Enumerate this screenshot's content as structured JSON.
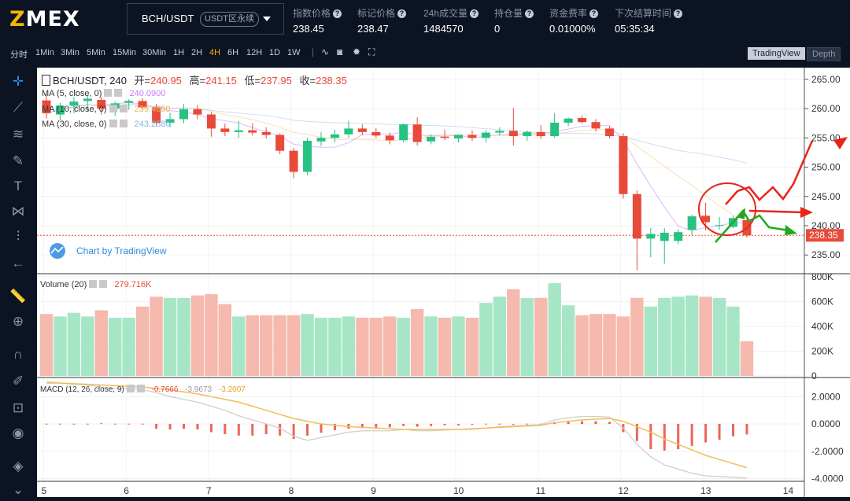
{
  "header": {
    "logo": "ZMEX",
    "pair": "BCH/USDT",
    "pair_tag": "USDT区永续",
    "stats": [
      {
        "label": "指数价格",
        "value": "238.45"
      },
      {
        "label": "标记价格",
        "value": "238.47"
      },
      {
        "label": "24h成交量",
        "value": "1484570"
      },
      {
        "label": "持仓量",
        "value": "0"
      },
      {
        "label": "资金费率",
        "value": "0.01000%"
      },
      {
        "label": "下次结算时间",
        "value": "05:35:34"
      }
    ]
  },
  "toolbar": {
    "timeframes": [
      "分时",
      "1Min",
      "3Min",
      "5Min",
      "15Min",
      "30Min",
      "1H",
      "2H",
      "4H",
      "6H",
      "12H",
      "1D",
      "1W"
    ],
    "active_timeframe": "4H",
    "view_tabs": [
      "TradingView",
      "Depth"
    ]
  },
  "sidebar": {
    "icons": [
      "crosshair-icon",
      "trend-line-icon",
      "fib-icon",
      "brush-icon",
      "text-icon",
      "pattern-icon",
      "measure-icon",
      "back-arrow-icon",
      "ruler-icon",
      "zoom-in-icon",
      "magnet-icon",
      "lock-draw-icon",
      "lock-icon",
      "eye-icon",
      "layers-icon",
      "chevron-down-icon"
    ]
  },
  "chart": {
    "legend": {
      "symbol": "BCH/USDT, 240",
      "open_label": "开=",
      "open": "240.95",
      "high_label": "高=",
      "high": "241.15",
      "low_label": "低=",
      "low": "237.95",
      "close_label": "收=",
      "close": "238.35",
      "ma5_label": "MA (5, close, 0)",
      "ma5": "240.0900",
      "ma10_label": "MA (10, close, 0)",
      "ma10": "239.4650",
      "ma30_label": "MA (30, close, 0)",
      "ma30": "243.2580"
    },
    "watermark": "Chart by TradingView",
    "price_axis": [
      "265.00",
      "260.00",
      "255.00",
      "250.00",
      "245.00",
      "240.00",
      "235.00"
    ],
    "last_price": "238.35",
    "volume_legend": {
      "label": "Volume (20)",
      "value": "279.716K"
    },
    "volume_axis": [
      "800K",
      "600K",
      "400K",
      "200K",
      "0"
    ],
    "macd_legend": {
      "label": "MACD (12, 26, close, 9)",
      "hist": "-0.7666",
      "macd": "-3.9673",
      "signal": "-3.2007"
    },
    "macd_axis": [
      "2.0000",
      "0.0000",
      "-2.0000",
      "-4.0000"
    ],
    "date_axis": [
      "5",
      "6",
      "7",
      "8",
      "9",
      "10",
      "11",
      "12",
      "13",
      "14"
    ]
  },
  "chart_data": {
    "type": "candlestick",
    "up_color": "#26c281",
    "down_color": "#e84a3a",
    "price_ylim": [
      231.8,
      267.0
    ],
    "volume_ylim": [
      0,
      800000
    ],
    "macd_ylim": [
      -4.2,
      3.4
    ],
    "date_labels": [
      "5",
      "6",
      "7",
      "8",
      "9",
      "10",
      "11",
      "12",
      "13",
      "14"
    ],
    "candles": [
      {
        "o": 261.4,
        "h": 262.5,
        "l": 258.3,
        "c": 259.2,
        "v": 500000
      },
      {
        "o": 259.0,
        "h": 261.0,
        "l": 258.0,
        "c": 260.5,
        "v": 480000
      },
      {
        "o": 260.5,
        "h": 262.0,
        "l": 259.2,
        "c": 261.2,
        "v": 510000
      },
      {
        "o": 261.3,
        "h": 262.2,
        "l": 259.6,
        "c": 261.7,
        "v": 480000
      },
      {
        "o": 261.5,
        "h": 262.0,
        "l": 259.0,
        "c": 260.0,
        "v": 530000
      },
      {
        "o": 260.0,
        "h": 261.2,
        "l": 258.8,
        "c": 260.9,
        "v": 470000
      },
      {
        "o": 261.0,
        "h": 261.6,
        "l": 259.8,
        "c": 261.3,
        "v": 470000
      },
      {
        "o": 261.3,
        "h": 261.8,
        "l": 259.8,
        "c": 260.2,
        "v": 560000
      },
      {
        "o": 260.2,
        "h": 260.8,
        "l": 257.0,
        "c": 257.6,
        "v": 640000
      },
      {
        "o": 257.6,
        "h": 259.3,
        "l": 256.8,
        "c": 258.2,
        "v": 630000
      },
      {
        "o": 258.2,
        "h": 260.8,
        "l": 257.5,
        "c": 259.9,
        "v": 630000
      },
      {
        "o": 259.9,
        "h": 260.6,
        "l": 258.2,
        "c": 259.0,
        "v": 650000
      },
      {
        "o": 259.0,
        "h": 259.4,
        "l": 255.2,
        "c": 256.6,
        "v": 660000
      },
      {
        "o": 256.6,
        "h": 257.4,
        "l": 255.3,
        "c": 256.0,
        "v": 580000
      },
      {
        "o": 256.0,
        "h": 257.9,
        "l": 255.0,
        "c": 256.3,
        "v": 480000
      },
      {
        "o": 256.3,
        "h": 257.5,
        "l": 255.4,
        "c": 255.9,
        "v": 490000
      },
      {
        "o": 256.0,
        "h": 256.8,
        "l": 254.9,
        "c": 255.5,
        "v": 490000
      },
      {
        "o": 255.5,
        "h": 255.8,
        "l": 252.2,
        "c": 252.8,
        "v": 490000
      },
      {
        "o": 252.8,
        "h": 253.3,
        "l": 248.1,
        "c": 249.2,
        "v": 490000
      },
      {
        "o": 249.2,
        "h": 255.0,
        "l": 248.6,
        "c": 254.5,
        "v": 500000
      },
      {
        "o": 254.4,
        "h": 256.0,
        "l": 253.6,
        "c": 255.0,
        "v": 470000
      },
      {
        "o": 255.0,
        "h": 256.4,
        "l": 254.2,
        "c": 255.6,
        "v": 470000
      },
      {
        "o": 255.6,
        "h": 257.9,
        "l": 255.0,
        "c": 256.6,
        "v": 480000
      },
      {
        "o": 256.6,
        "h": 257.3,
        "l": 255.5,
        "c": 256.0,
        "v": 470000
      },
      {
        "o": 256.0,
        "h": 256.7,
        "l": 255.0,
        "c": 255.4,
        "v": 470000
      },
      {
        "o": 255.4,
        "h": 255.9,
        "l": 253.9,
        "c": 254.6,
        "v": 480000
      },
      {
        "o": 254.6,
        "h": 257.5,
        "l": 254.2,
        "c": 257.3,
        "v": 470000
      },
      {
        "o": 257.3,
        "h": 258.5,
        "l": 253.7,
        "c": 254.3,
        "v": 540000
      },
      {
        "o": 254.4,
        "h": 255.6,
        "l": 253.9,
        "c": 255.2,
        "v": 480000
      },
      {
        "o": 255.2,
        "h": 256.4,
        "l": 254.6,
        "c": 255.0,
        "v": 470000
      },
      {
        "o": 254.9,
        "h": 255.6,
        "l": 254.2,
        "c": 255.5,
        "v": 480000
      },
      {
        "o": 255.5,
        "h": 256.3,
        "l": 254.5,
        "c": 255.0,
        "v": 470000
      },
      {
        "o": 255.0,
        "h": 256.3,
        "l": 254.2,
        "c": 255.9,
        "v": 590000
      },
      {
        "o": 255.9,
        "h": 256.8,
        "l": 255.4,
        "c": 256.2,
        "v": 640000
      },
      {
        "o": 256.2,
        "h": 260.1,
        "l": 253.7,
        "c": 255.3,
        "v": 700000
      },
      {
        "o": 255.3,
        "h": 256.3,
        "l": 254.5,
        "c": 256.0,
        "v": 630000
      },
      {
        "o": 256.0,
        "h": 257.2,
        "l": 254.8,
        "c": 255.3,
        "v": 630000
      },
      {
        "o": 255.3,
        "h": 259.2,
        "l": 255.0,
        "c": 257.6,
        "v": 750000
      },
      {
        "o": 257.6,
        "h": 258.5,
        "l": 257.0,
        "c": 258.3,
        "v": 570000
      },
      {
        "o": 258.4,
        "h": 258.8,
        "l": 257.4,
        "c": 257.7,
        "v": 490000
      },
      {
        "o": 257.7,
        "h": 258.2,
        "l": 256.1,
        "c": 256.6,
        "v": 500000
      },
      {
        "o": 256.6,
        "h": 257.0,
        "l": 254.9,
        "c": 255.3,
        "v": 500000
      },
      {
        "o": 255.3,
        "h": 255.8,
        "l": 244.6,
        "c": 245.4,
        "v": 480000
      },
      {
        "o": 245.4,
        "h": 246.0,
        "l": 232.4,
        "c": 237.8,
        "v": 630000
      },
      {
        "o": 237.8,
        "h": 239.6,
        "l": 234.6,
        "c": 238.6,
        "v": 560000
      },
      {
        "o": 237.4,
        "h": 239.6,
        "l": 233.5,
        "c": 238.8,
        "v": 630000
      },
      {
        "o": 237.4,
        "h": 239.4,
        "l": 236.8,
        "c": 238.9,
        "v": 640000
      },
      {
        "o": 239.3,
        "h": 241.9,
        "l": 238.3,
        "c": 241.6,
        "v": 650000
      },
      {
        "o": 241.7,
        "h": 243.9,
        "l": 239.2,
        "c": 240.6,
        "v": 640000
      },
      {
        "o": 240.0,
        "h": 241.5,
        "l": 239.3,
        "c": 240.1,
        "v": 630000
      },
      {
        "o": 239.8,
        "h": 241.7,
        "l": 239.6,
        "c": 241.3,
        "v": 560000
      },
      {
        "o": 240.95,
        "h": 241.15,
        "l": 237.95,
        "c": 238.35,
        "v": 279716
      }
    ],
    "macd": [
      {
        "hist": 0.02,
        "macd": 3.1,
        "signal": 3.0
      },
      {
        "hist": 0.02,
        "macd": 3.0,
        "signal": 3.0
      },
      {
        "hist": 0.02,
        "macd": 2.9,
        "signal": 2.95
      },
      {
        "hist": 0.02,
        "macd": 2.85,
        "signal": 2.9
      },
      {
        "hist": 0.05,
        "macd": 2.7,
        "signal": 2.85
      },
      {
        "hist": 0.02,
        "macd": 2.6,
        "signal": 2.8
      },
      {
        "hist": 0.02,
        "macd": 2.6,
        "signal": 2.75
      },
      {
        "hist": 0.02,
        "macd": 2.5,
        "signal": 2.7
      },
      {
        "hist": -0.35,
        "macd": 2.3,
        "signal": 2.6
      },
      {
        "hist": -0.4,
        "macd": 2.0,
        "signal": 2.5
      },
      {
        "hist": -0.35,
        "macd": 1.8,
        "signal": 2.35
      },
      {
        "hist": -0.4,
        "macd": 1.6,
        "signal": 2.2
      },
      {
        "hist": -0.6,
        "macd": 1.3,
        "signal": 2.0
      },
      {
        "hist": -0.75,
        "macd": 1.0,
        "signal": 1.8
      },
      {
        "hist": -0.85,
        "macd": 0.6,
        "signal": 1.6
      },
      {
        "hist": -0.85,
        "macd": 0.3,
        "signal": 1.3
      },
      {
        "hist": -0.75,
        "macd": 0.0,
        "signal": 1.0
      },
      {
        "hist": -0.85,
        "macd": -0.3,
        "signal": 0.7
      },
      {
        "hist": -1.1,
        "macd": -0.9,
        "signal": 0.4
      },
      {
        "hist": -0.85,
        "macd": -1.2,
        "signal": 0.2
      },
      {
        "hist": -0.65,
        "macd": -1.0,
        "signal": 0.0
      },
      {
        "hist": -0.45,
        "macd": -0.8,
        "signal": -0.1
      },
      {
        "hist": -0.35,
        "macd": -0.6,
        "signal": -0.2
      },
      {
        "hist": -0.3,
        "macd": -0.5,
        "signal": -0.25
      },
      {
        "hist": -0.3,
        "macd": -0.5,
        "signal": -0.3
      },
      {
        "hist": -0.25,
        "macd": -0.5,
        "signal": -0.35
      },
      {
        "hist": -0.15,
        "macd": -0.4,
        "signal": -0.4
      },
      {
        "hist": -0.2,
        "macd": -0.5,
        "signal": -0.4
      },
      {
        "hist": -0.15,
        "macd": -0.5,
        "signal": -0.4
      },
      {
        "hist": -0.1,
        "macd": -0.45,
        "signal": -0.4
      },
      {
        "hist": -0.1,
        "macd": -0.4,
        "signal": -0.4
      },
      {
        "hist": -0.05,
        "macd": -0.4,
        "signal": -0.35
      },
      {
        "hist": 0.02,
        "macd": -0.3,
        "signal": -0.3
      },
      {
        "hist": 0.02,
        "macd": -0.2,
        "signal": -0.25
      },
      {
        "hist": -0.05,
        "macd": -0.15,
        "signal": -0.2
      },
      {
        "hist": 0.02,
        "macd": -0.1,
        "signal": -0.15
      },
      {
        "hist": 0.02,
        "macd": -0.05,
        "signal": -0.1
      },
      {
        "hist": 0.15,
        "macd": 0.3,
        "signal": 0.1
      },
      {
        "hist": 0.2,
        "macd": 0.45,
        "signal": 0.2
      },
      {
        "hist": 0.2,
        "macd": 0.55,
        "signal": 0.3
      },
      {
        "hist": 0.2,
        "macd": 0.55,
        "signal": 0.35
      },
      {
        "hist": 0.15,
        "macd": 0.5,
        "signal": 0.4
      },
      {
        "hist": -0.6,
        "macd": -0.3,
        "signal": 0.2
      },
      {
        "hist": -1.25,
        "macd": -1.5,
        "signal": -0.2
      },
      {
        "hist": -1.85,
        "macd": -2.4,
        "signal": -0.6
      },
      {
        "hist": -1.95,
        "macd": -3.0,
        "signal": -1.1
      },
      {
        "hist": -1.85,
        "macd": -3.3,
        "signal": -1.5
      },
      {
        "hist": -1.6,
        "macd": -3.6,
        "signal": -1.9
      },
      {
        "hist": -1.35,
        "macd": -3.8,
        "signal": -2.3
      },
      {
        "hist": -1.15,
        "macd": -3.85,
        "signal": -2.6
      },
      {
        "hist": -0.9,
        "macd": -3.9,
        "signal": -2.9
      },
      {
        "hist": -0.7666,
        "macd": -3.9673,
        "signal": -3.2007
      }
    ]
  }
}
